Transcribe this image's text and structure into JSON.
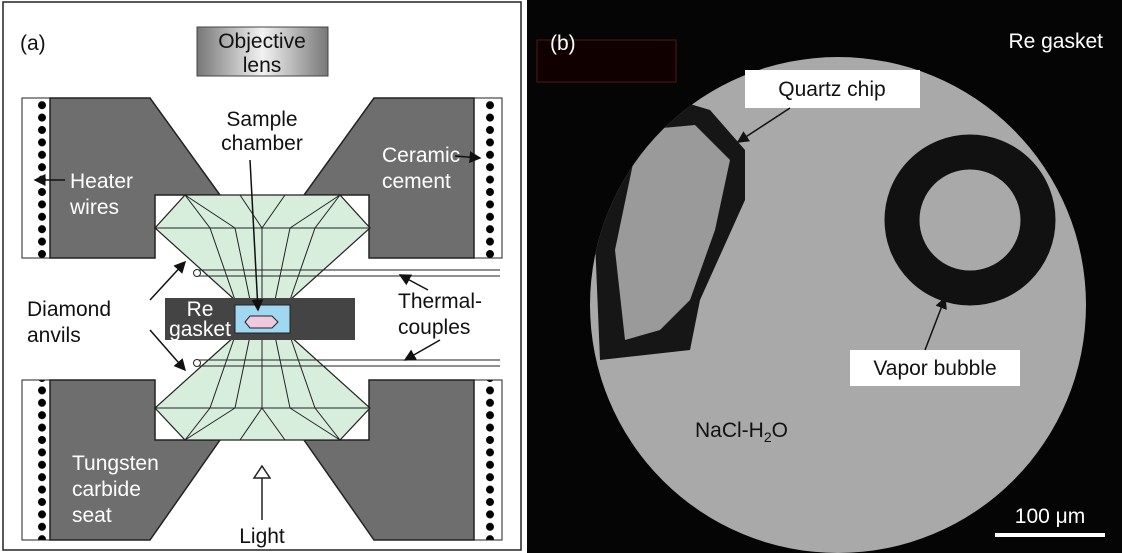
{
  "panel_a": {
    "label": "(a)",
    "objective_lens": [
      "Objective",
      "lens"
    ],
    "sample_chamber": [
      "Sample",
      "chamber"
    ],
    "ceramic_cement": [
      "Ceramic",
      "cement"
    ],
    "heater_wires": [
      "Heater",
      "wires"
    ],
    "diamond_anvils": [
      "Diamond",
      "anvils"
    ],
    "re_gasket": [
      "Re",
      "gasket"
    ],
    "thermocouples": [
      "Thermal-",
      "couples"
    ],
    "tungsten_carbide_seat": [
      "Tungsten",
      "carbide",
      "seat"
    ],
    "light": "Light"
  },
  "panel_b": {
    "label": "(b)",
    "re_gasket": "Re gasket",
    "quartz_chip": "Quartz chip",
    "vapor_bubble": "Vapor bubble",
    "solution": [
      "NaCl-H",
      "2",
      "O"
    ],
    "scale_bar": "100 μm"
  }
}
